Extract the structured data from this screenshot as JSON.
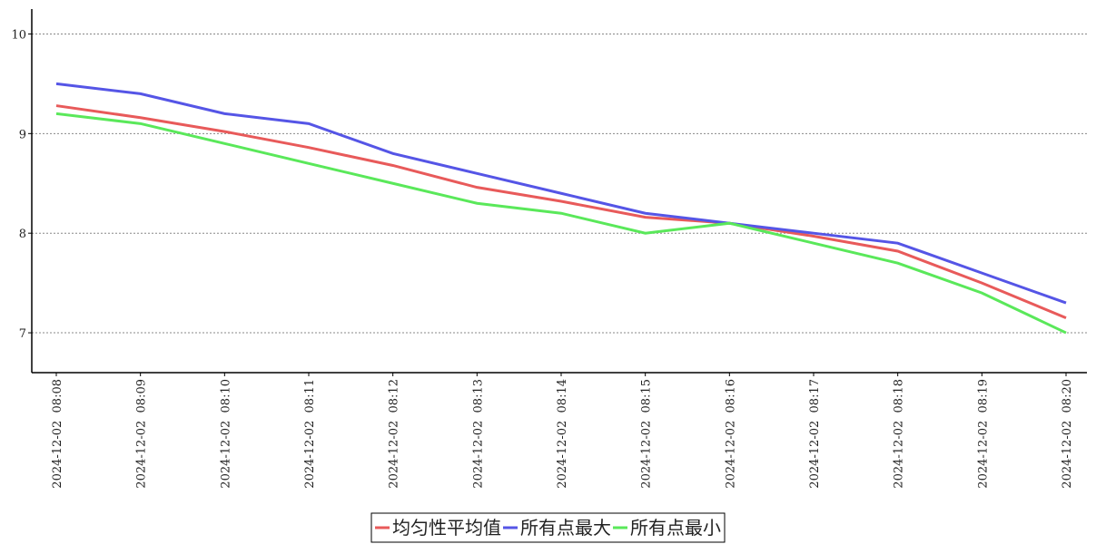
{
  "chart_data": {
    "type": "line",
    "categories": [
      "2024-12-02  08:08",
      "2024-12-02  08:09",
      "2024-12-02  08:10",
      "2024-12-02  08:11",
      "2024-12-02  08:12",
      "2024-12-02  08:13",
      "2024-12-02  08:14",
      "2024-12-02  08:15",
      "2024-12-02  08:16",
      "2024-12-02  08:17",
      "2024-12-02  08:18",
      "2024-12-02  08:19",
      "2024-12-02  08:20"
    ],
    "series": [
      {
        "name": "均匀性平均值",
        "color": "#e85a5a",
        "values": [
          9.28,
          9.16,
          9.02,
          8.86,
          8.68,
          8.46,
          8.32,
          8.16,
          8.1,
          7.97,
          7.82,
          7.5,
          7.15
        ]
      },
      {
        "name": "所有点最大",
        "color": "#5555e6",
        "values": [
          9.5,
          9.4,
          9.2,
          9.1,
          8.8,
          8.6,
          8.4,
          8.2,
          8.1,
          8.0,
          7.9,
          7.6,
          7.3
        ]
      },
      {
        "name": "所有点最小",
        "color": "#5ae85a",
        "values": [
          9.2,
          9.1,
          8.9,
          8.7,
          8.5,
          8.3,
          8.2,
          8.0,
          8.1,
          7.9,
          7.7,
          7.4,
          7.0
        ]
      }
    ],
    "ylim": [
      6.6,
      10.25
    ],
    "yticks": [
      7,
      8,
      9,
      10
    ],
    "grid": true,
    "legend": "bottom"
  }
}
